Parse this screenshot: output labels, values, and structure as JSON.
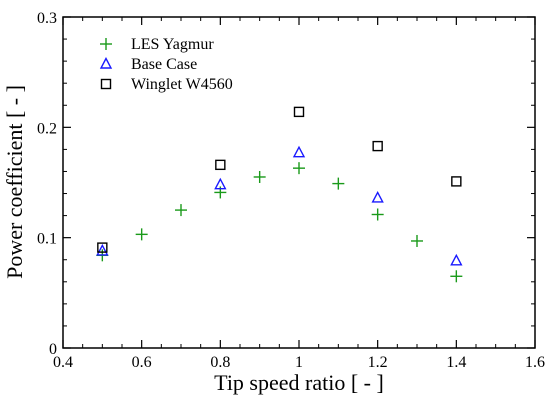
{
  "chart_data": {
    "type": "scatter",
    "title": "",
    "xlabel": "Tip speed ratio [ - ]",
    "ylabel": "Power coefficient [ - ]",
    "xlim": [
      0.4,
      1.6
    ],
    "ylim": [
      0,
      0.3
    ],
    "xticks": [
      0.4,
      0.6,
      0.8,
      1.0,
      1.2,
      1.4,
      1.6
    ],
    "xtick_labels": [
      "0.4",
      "0.6",
      "0.8",
      "1",
      "1.2",
      "1.4",
      "1.6"
    ],
    "yticks": [
      0,
      0.1,
      0.2,
      0.3
    ],
    "ytick_labels": [
      "0",
      "0.1",
      "0.2",
      "0.3"
    ],
    "grid": false,
    "legend_position": "top-left",
    "series": [
      {
        "name": "LES Yagmur",
        "marker": "plus",
        "color": "#1a9a1a",
        "x": [
          0.5,
          0.6,
          0.7,
          0.8,
          0.9,
          1.0,
          1.1,
          1.2,
          1.3,
          1.4
        ],
        "y": [
          0.084,
          0.103,
          0.125,
          0.141,
          0.155,
          0.163,
          0.149,
          0.121,
          0.097,
          0.065
        ]
      },
      {
        "name": "Base Case",
        "marker": "triangle",
        "color": "#1a1aff",
        "x": [
          0.5,
          0.8,
          1.0,
          1.2,
          1.4
        ],
        "y": [
          0.088,
          0.148,
          0.177,
          0.136,
          0.079
        ]
      },
      {
        "name": "Winglet W4560",
        "marker": "square",
        "color": "#000000",
        "x": [
          0.5,
          0.8,
          1.0,
          1.2,
          1.4
        ],
        "y": [
          0.091,
          0.166,
          0.214,
          0.183,
          0.151
        ]
      }
    ]
  }
}
